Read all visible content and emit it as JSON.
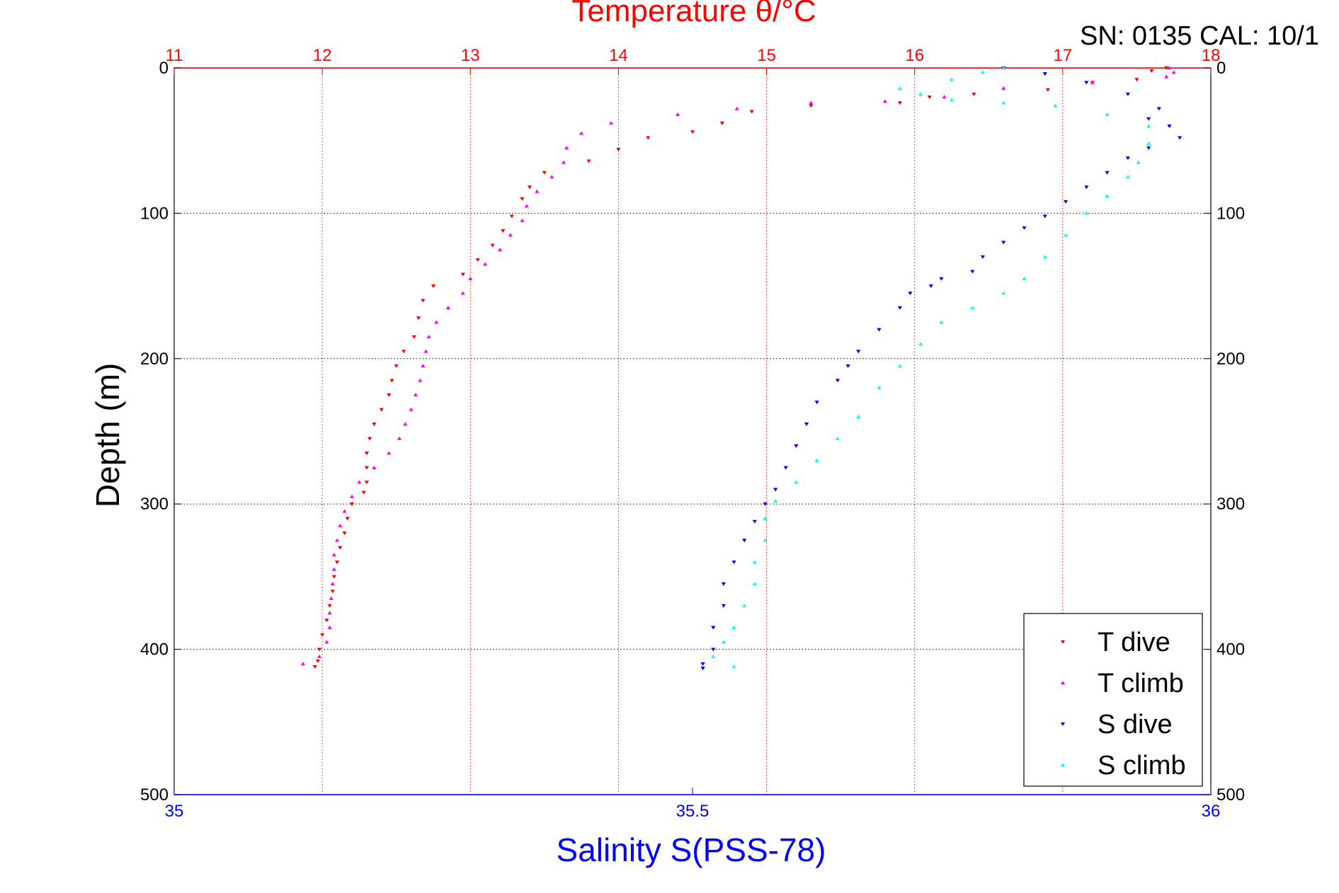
{
  "chart_data": {
    "type": "scatter",
    "title": "Temperature θ/°C",
    "subtitle": "SN: 0135  CAL: 10/1",
    "ylabel": "Depth (m)",
    "xlabel_bottom": "Salinity S(PSS-78)",
    "xlabel_top": "Temperature θ/°C",
    "y_axis": {
      "lim": [
        0,
        500
      ],
      "reversed": true,
      "ticks": [
        0,
        100,
        200,
        300,
        400,
        500
      ]
    },
    "x_top_axis": {
      "lim": [
        11,
        18
      ],
      "ticks": [
        11,
        12,
        13,
        14,
        15,
        16,
        17,
        18
      ],
      "color": "#ff0000"
    },
    "x_bottom_axis": {
      "lim": [
        35,
        36
      ],
      "ticks": [
        35,
        35.5,
        36
      ],
      "tick_labels": [
        "35",
        "35.5",
        "36"
      ],
      "color": "#0000ff"
    },
    "grid": true,
    "legend": {
      "placement": "bottom-right",
      "entries": [
        "T dive",
        "T climb",
        "S dive",
        "S climb"
      ]
    },
    "series": [
      {
        "name": "T dive",
        "axis": "top",
        "color": "#ff0000",
        "marker": "triangle-down",
        "points": [
          [
            17.7,
            0
          ],
          [
            17.6,
            2
          ],
          [
            17.5,
            8
          ],
          [
            17.2,
            10
          ],
          [
            16.9,
            15
          ],
          [
            16.4,
            18
          ],
          [
            16.1,
            20
          ],
          [
            15.9,
            24
          ],
          [
            15.3,
            26
          ],
          [
            14.9,
            30
          ],
          [
            14.7,
            38
          ],
          [
            14.5,
            44
          ],
          [
            14.2,
            48
          ],
          [
            14.0,
            56
          ],
          [
            13.8,
            64
          ],
          [
            13.5,
            72
          ],
          [
            13.4,
            82
          ],
          [
            13.35,
            90
          ],
          [
            13.28,
            102
          ],
          [
            13.22,
            112
          ],
          [
            13.15,
            122
          ],
          [
            13.05,
            132
          ],
          [
            12.95,
            142
          ],
          [
            12.75,
            150
          ],
          [
            12.68,
            160
          ],
          [
            12.65,
            172
          ],
          [
            12.62,
            185
          ],
          [
            12.55,
            195
          ],
          [
            12.5,
            205
          ],
          [
            12.47,
            215
          ],
          [
            12.45,
            225
          ],
          [
            12.4,
            235
          ],
          [
            12.35,
            245
          ],
          [
            12.32,
            255
          ],
          [
            12.3,
            265
          ],
          [
            12.3,
            275
          ],
          [
            12.3,
            285
          ],
          [
            12.28,
            292
          ],
          [
            12.2,
            300
          ],
          [
            12.17,
            310
          ],
          [
            12.15,
            320
          ],
          [
            12.12,
            330
          ],
          [
            12.1,
            340
          ],
          [
            12.08,
            350
          ],
          [
            12.07,
            360
          ],
          [
            12.05,
            370
          ],
          [
            12.03,
            380
          ],
          [
            12.0,
            390
          ],
          [
            11.98,
            400
          ],
          [
            11.97,
            408
          ],
          [
            11.95,
            412
          ]
        ]
      },
      {
        "name": "T climb",
        "axis": "top",
        "color": "#ff00ff",
        "marker": "triangle-up",
        "points": [
          [
            11.87,
            410
          ],
          [
            11.98,
            405
          ],
          [
            12.03,
            395
          ],
          [
            12.05,
            385
          ],
          [
            12.05,
            375
          ],
          [
            12.06,
            365
          ],
          [
            12.07,
            355
          ],
          [
            12.08,
            345
          ],
          [
            12.08,
            335
          ],
          [
            12.1,
            325
          ],
          [
            12.12,
            315
          ],
          [
            12.15,
            305
          ],
          [
            12.2,
            295
          ],
          [
            12.25,
            285
          ],
          [
            12.35,
            275
          ],
          [
            12.45,
            265
          ],
          [
            12.52,
            255
          ],
          [
            12.56,
            245
          ],
          [
            12.6,
            235
          ],
          [
            12.63,
            225
          ],
          [
            12.66,
            215
          ],
          [
            12.68,
            205
          ],
          [
            12.7,
            195
          ],
          [
            12.72,
            185
          ],
          [
            12.77,
            175
          ],
          [
            12.85,
            165
          ],
          [
            12.95,
            155
          ],
          [
            13.0,
            145
          ],
          [
            13.1,
            135
          ],
          [
            13.2,
            125
          ],
          [
            13.27,
            115
          ],
          [
            13.35,
            105
          ],
          [
            13.38,
            95
          ],
          [
            13.45,
            85
          ],
          [
            13.55,
            75
          ],
          [
            13.63,
            65
          ],
          [
            13.65,
            55
          ],
          [
            13.75,
            45
          ],
          [
            13.95,
            38
          ],
          [
            14.4,
            32
          ],
          [
            14.8,
            28
          ],
          [
            15.3,
            24
          ],
          [
            15.8,
            23
          ],
          [
            16.2,
            20
          ],
          [
            16.6,
            14
          ],
          [
            17.2,
            10
          ],
          [
            17.7,
            6
          ],
          [
            17.75,
            3
          ],
          [
            17.72,
            0
          ]
        ]
      },
      {
        "name": "S dive",
        "axis": "bottom",
        "color": "#0000ff",
        "marker": "triangle-down",
        "points": [
          [
            35.8,
            0
          ],
          [
            35.84,
            4
          ],
          [
            35.88,
            10
          ],
          [
            35.92,
            18
          ],
          [
            35.95,
            28
          ],
          [
            35.94,
            35
          ],
          [
            35.96,
            40
          ],
          [
            35.97,
            48
          ],
          [
            35.94,
            55
          ],
          [
            35.92,
            62
          ],
          [
            35.9,
            72
          ],
          [
            35.88,
            82
          ],
          [
            35.86,
            92
          ],
          [
            35.84,
            102
          ],
          [
            35.82,
            110
          ],
          [
            35.8,
            120
          ],
          [
            35.78,
            130
          ],
          [
            35.77,
            140
          ],
          [
            35.74,
            145
          ],
          [
            35.73,
            150
          ],
          [
            35.71,
            155
          ],
          [
            35.7,
            165
          ],
          [
            35.68,
            180
          ],
          [
            35.66,
            195
          ],
          [
            35.65,
            205
          ],
          [
            35.64,
            215
          ],
          [
            35.62,
            230
          ],
          [
            35.61,
            245
          ],
          [
            35.6,
            260
          ],
          [
            35.59,
            275
          ],
          [
            35.58,
            290
          ],
          [
            35.57,
            300
          ],
          [
            35.56,
            312
          ],
          [
            35.55,
            325
          ],
          [
            35.54,
            340
          ],
          [
            35.53,
            355
          ],
          [
            35.53,
            370
          ],
          [
            35.52,
            385
          ],
          [
            35.52,
            400
          ],
          [
            35.51,
            410
          ],
          [
            35.51,
            413
          ]
        ]
      },
      {
        "name": "S climb",
        "axis": "bottom",
        "color": "#00ffff",
        "marker": "triangle-up",
        "points": [
          [
            35.54,
            412
          ],
          [
            35.52,
            405
          ],
          [
            35.53,
            395
          ],
          [
            35.54,
            385
          ],
          [
            35.55,
            370
          ],
          [
            35.56,
            355
          ],
          [
            35.56,
            340
          ],
          [
            35.57,
            325
          ],
          [
            35.57,
            310
          ],
          [
            35.58,
            298
          ],
          [
            35.6,
            285
          ],
          [
            35.62,
            270
          ],
          [
            35.64,
            255
          ],
          [
            35.66,
            240
          ],
          [
            35.68,
            220
          ],
          [
            35.7,
            205
          ],
          [
            35.72,
            190
          ],
          [
            35.74,
            175
          ],
          [
            35.77,
            165
          ],
          [
            35.8,
            155
          ],
          [
            35.82,
            145
          ],
          [
            35.84,
            130
          ],
          [
            35.86,
            115
          ],
          [
            35.88,
            100
          ],
          [
            35.9,
            88
          ],
          [
            35.92,
            75
          ],
          [
            35.93,
            65
          ],
          [
            35.94,
            52
          ],
          [
            35.94,
            40
          ],
          [
            35.9,
            32
          ],
          [
            35.85,
            26
          ],
          [
            35.8,
            24
          ],
          [
            35.75,
            22
          ],
          [
            35.72,
            18
          ],
          [
            35.7,
            14
          ],
          [
            35.75,
            8
          ],
          [
            35.78,
            3
          ],
          [
            35.8,
            0
          ]
        ]
      }
    ]
  }
}
